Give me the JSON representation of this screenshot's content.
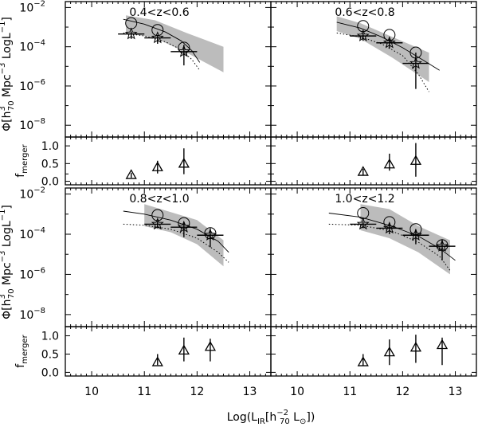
{
  "chart_data": {
    "type": "scatter",
    "figure": {
      "xlabel": "Log(L_IR[h_70^-2 L_sun])",
      "ylabel_lf": "Φ[h_70^3 Mpc^-3 LogL^-1]",
      "ylabel_merger": "f_merger",
      "xlim": [
        9.5,
        13.4
      ],
      "xticks": [
        10,
        11,
        12,
        13
      ],
      "ylim_lf_log10": [
        -8.6,
        -1.7
      ],
      "yticks_lf_log10": [
        -2,
        -4,
        -6,
        -8
      ],
      "ylim_merger": [
        -0.1,
        1.25
      ],
      "yticks_merger": [
        0.0,
        0.5,
        1.0
      ]
    },
    "panels": [
      {
        "label": "0.4<z<0.6",
        "band": {
          "x": [
            10.65,
            11.2,
            11.8,
            12.5
          ],
          "upper": [
            -2.4,
            -2.65,
            -3.3,
            -4.0
          ],
          "lower": [
            -3.3,
            -3.55,
            -4.3,
            -5.3
          ]
        },
        "model_solid": {
          "x": [
            10.6,
            11.0,
            11.4,
            11.7,
            11.9,
            12.05
          ],
          "y": [
            -2.6,
            -2.85,
            -3.25,
            -3.7,
            -4.2,
            -4.8
          ]
        },
        "model_dotted": {
          "x": [
            10.6,
            11.0,
            11.4,
            11.7,
            11.9,
            12.05
          ],
          "y": [
            -3.3,
            -3.45,
            -3.75,
            -4.15,
            -4.65,
            -5.2
          ]
        },
        "circles": {
          "x": [
            10.75,
            11.25,
            11.75
          ],
          "y": [
            -2.8,
            -3.15,
            -4.05
          ]
        },
        "stars": [
          {
            "x": 10.75,
            "y": -3.35,
            "xerr": 0.25,
            "yerr_up": 0.12,
            "yerr_lo": 0.25
          },
          {
            "x": 11.25,
            "y": -3.55,
            "xerr": 0.25,
            "yerr_up": 0.15,
            "yerr_lo": 0.3
          },
          {
            "x": 11.75,
            "y": -4.25,
            "xerr": 0.25,
            "yerr_up": 0.35,
            "yerr_lo": 0.7
          }
        ],
        "merger": [
          {
            "x": 10.75,
            "y": 0.18,
            "yerr_up": 0.06,
            "yerr_lo": 0.08
          },
          {
            "x": 11.25,
            "y": 0.4,
            "yerr_up": 0.18,
            "yerr_lo": 0.18
          },
          {
            "x": 11.75,
            "y": 0.5,
            "yerr_up": 0.43,
            "yerr_lo": 0.3
          }
        ]
      },
      {
        "label": "0.6<z<0.8",
        "band": {
          "x": [
            10.75,
            11.2,
            11.8,
            12.5
          ],
          "upper": [
            -2.45,
            -2.8,
            -3.5,
            -4.3
          ],
          "lower": [
            -3.2,
            -3.6,
            -4.55,
            -5.8
          ]
        },
        "model_solid": {
          "x": [
            10.75,
            11.2,
            11.6,
            12.0,
            12.4,
            12.7
          ],
          "y": [
            -2.75,
            -3.05,
            -3.5,
            -4.05,
            -4.7,
            -5.2
          ]
        },
        "model_dotted": {
          "x": [
            10.75,
            11.2,
            11.6,
            12.0,
            12.3,
            12.5
          ],
          "y": [
            -3.3,
            -3.5,
            -3.85,
            -4.45,
            -5.4,
            -6.3
          ]
        },
        "circles": {
          "x": [
            11.25,
            11.75,
            12.25
          ],
          "y": [
            -2.95,
            -3.4,
            -4.3
          ]
        },
        "stars": [
          {
            "x": 11.25,
            "y": -3.45,
            "xerr": 0.25,
            "yerr_up": 0.15,
            "yerr_lo": 0.25
          },
          {
            "x": 11.75,
            "y": -3.8,
            "xerr": 0.25,
            "yerr_up": 0.2,
            "yerr_lo": 0.3
          },
          {
            "x": 12.25,
            "y": -4.85,
            "xerr": 0.25,
            "yerr_up": 0.55,
            "yerr_lo": 1.3
          }
        ],
        "merger": [
          {
            "x": 11.25,
            "y": 0.27,
            "yerr_up": 0.08,
            "yerr_lo": 0.1
          },
          {
            "x": 11.75,
            "y": 0.48,
            "yerr_up": 0.3,
            "yerr_lo": 0.18
          },
          {
            "x": 12.25,
            "y": 0.58,
            "yerr_up": 0.5,
            "yerr_lo": 0.45
          }
        ]
      },
      {
        "label": "0.8<z<1.0",
        "band": {
          "x": [
            11.0,
            11.5,
            12.0,
            12.5
          ],
          "upper": [
            -2.5,
            -2.9,
            -3.3,
            -4.3
          ],
          "lower": [
            -3.6,
            -3.9,
            -4.5,
            -5.6
          ]
        },
        "model_solid": {
          "x": [
            10.6,
            11.0,
            11.5,
            12.0,
            12.4,
            12.6
          ],
          "y": [
            -2.85,
            -3.0,
            -3.3,
            -3.75,
            -4.35,
            -4.9
          ]
        },
        "model_dotted": {
          "x": [
            10.6,
            11.0,
            11.5,
            12.0,
            12.4,
            12.6
          ],
          "y": [
            -3.5,
            -3.55,
            -3.75,
            -4.2,
            -4.9,
            -5.4
          ]
        },
        "circles": {
          "x": [
            11.25,
            11.75,
            12.25
          ],
          "y": [
            -3.05,
            -3.45,
            -3.95
          ]
        },
        "stars": [
          {
            "x": 11.25,
            "y": -3.5,
            "xerr": 0.25,
            "yerr_up": 0.15,
            "yerr_lo": 0.2
          },
          {
            "x": 11.75,
            "y": -3.65,
            "xerr": 0.25,
            "yerr_up": 0.25,
            "yerr_lo": 0.5
          },
          {
            "x": 12.25,
            "y": -4.05,
            "xerr": 0.25,
            "yerr_up": 0.35,
            "yerr_lo": 0.6
          }
        ],
        "merger": [
          {
            "x": 11.25,
            "y": 0.28,
            "yerr_up": 0.22,
            "yerr_lo": 0.08
          },
          {
            "x": 11.75,
            "y": 0.6,
            "yerr_up": 0.35,
            "yerr_lo": 0.3
          },
          {
            "x": 12.25,
            "y": 0.7,
            "yerr_up": 0.22,
            "yerr_lo": 0.4
          }
        ]
      },
      {
        "label": "1.0<z<1.2",
        "band": {
          "x": [
            11.2,
            11.75,
            12.3,
            12.9
          ],
          "upper": [
            -2.5,
            -2.75,
            -3.6,
            -4.3
          ],
          "lower": [
            -3.8,
            -4.2,
            -4.9,
            -6.0
          ]
        },
        "model_solid": {
          "x": [
            10.6,
            11.2,
            11.8,
            12.3,
            12.7,
            13.0
          ],
          "y": [
            -2.95,
            -3.15,
            -3.6,
            -4.1,
            -4.7,
            -5.3
          ]
        },
        "model_dotted": {
          "x": [
            10.6,
            11.2,
            11.8,
            12.3,
            12.7,
            12.9
          ],
          "y": [
            -3.5,
            -3.55,
            -3.85,
            -4.4,
            -5.1,
            -5.8
          ]
        },
        "circles": {
          "x": [
            11.25,
            11.75,
            12.25,
            12.75
          ],
          "y": [
            -2.95,
            -3.4,
            -3.75,
            -4.55
          ]
        },
        "stars": [
          {
            "x": 11.25,
            "y": -3.5,
            "xerr": 0.25,
            "yerr_up": 0.12,
            "yerr_lo": 0.2
          },
          {
            "x": 11.75,
            "y": -3.7,
            "xerr": 0.25,
            "yerr_up": 0.2,
            "yerr_lo": 0.3
          },
          {
            "x": 12.25,
            "y": -4.05,
            "xerr": 0.25,
            "yerr_up": 0.3,
            "yerr_lo": 0.45
          },
          {
            "x": 12.75,
            "y": -4.6,
            "xerr": 0.25,
            "yerr_up": 0.35,
            "yerr_lo": 0.7
          }
        ],
        "merger": [
          {
            "x": 11.25,
            "y": 0.28,
            "yerr_up": 0.22,
            "yerr_lo": 0.1
          },
          {
            "x": 11.75,
            "y": 0.55,
            "yerr_up": 0.35,
            "yerr_lo": 0.35
          },
          {
            "x": 12.25,
            "y": 0.68,
            "yerr_up": 0.35,
            "yerr_lo": 0.42
          },
          {
            "x": 12.75,
            "y": 0.75,
            "yerr_up": 0.2,
            "yerr_lo": 0.55
          }
        ]
      }
    ]
  },
  "labels": {
    "xlabel_prefix": "Log(L",
    "xlabel_sub_ir": "IR",
    "xlabel_open": "[h",
    "xlabel_sub": "70",
    "xlabel_sup": "−2",
    "xlabel_l": " L",
    "xlabel_sun": "⊙",
    "xlabel_close": "])",
    "phi": "Φ[h",
    "phi_sub": "70",
    "phi_sup": "3",
    "phi_mpc": " Mpc",
    "phi_mpc_sup": "−3",
    "phi_log": " LogL",
    "phi_log_sup": "−1",
    "phi_close": "]",
    "f": "f",
    "f_sub": "merger",
    "lf_tick_base": "10",
    "lf_tick_exps": [
      "−2",
      "−4",
      "−6",
      "−8"
    ],
    "merger_ticks": [
      "0.0",
      "0.5",
      "1.0"
    ],
    "x_ticks": [
      "10",
      "11",
      "12",
      "13"
    ]
  }
}
